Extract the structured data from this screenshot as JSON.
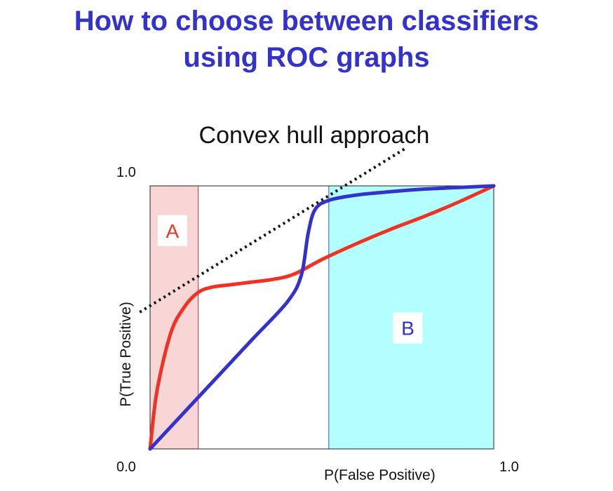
{
  "slide": {
    "title_line1": "How to choose between classifiers",
    "title_line2": "using ROC graphs"
  },
  "chart_data": {
    "type": "line",
    "subtitle": "Convex hull approach",
    "xlabel": "P(False Positive)",
    "ylabel": "P(True Positive)",
    "xlim": [
      0,
      1
    ],
    "ylim": [
      0,
      1
    ],
    "x_tick_labels": [
      "0.0",
      "1.0"
    ],
    "y_tick_labels": [
      "1.0"
    ],
    "grid": false,
    "series": [
      {
        "color": "#ee3322",
        "x": [
          0,
          0.02,
          0.06,
          0.1,
          0.14,
          0.18,
          0.24,
          0.3,
          0.36,
          0.42,
          0.5,
          0.6,
          0.7,
          0.8,
          0.9,
          1.0
        ],
        "y": [
          0,
          0.22,
          0.44,
          0.54,
          0.595,
          0.615,
          0.625,
          0.635,
          0.645,
          0.665,
          0.72,
          0.78,
          0.835,
          0.885,
          0.94,
          1.0
        ]
      },
      {
        "color": "#3333cc",
        "x": [
          0,
          0.1,
          0.2,
          0.3,
          0.4,
          0.44,
          0.46,
          0.48,
          0.52,
          0.6,
          0.7,
          0.8,
          0.9,
          1.0
        ],
        "y": [
          0,
          0.14,
          0.28,
          0.42,
          0.56,
          0.66,
          0.82,
          0.91,
          0.945,
          0.965,
          0.978,
          0.988,
          0.994,
          1.0
        ]
      }
    ],
    "hull_line": {
      "style": "dotted",
      "color": "#111111",
      "x": [
        -0.03,
        0.74
      ],
      "y": [
        0.52,
        1.14
      ]
    },
    "regions": [
      {
        "label": "A",
        "x_range": [
          0,
          0.14
        ],
        "fill": "#f9d6d6",
        "edge": "#cc3344",
        "label_color": "#ee3322"
      },
      {
        "label": "B",
        "x_range": [
          0.52,
          1.0
        ],
        "fill": "#b3ffff",
        "edge": "#3355cc",
        "label_color": "#3333cc"
      }
    ]
  }
}
